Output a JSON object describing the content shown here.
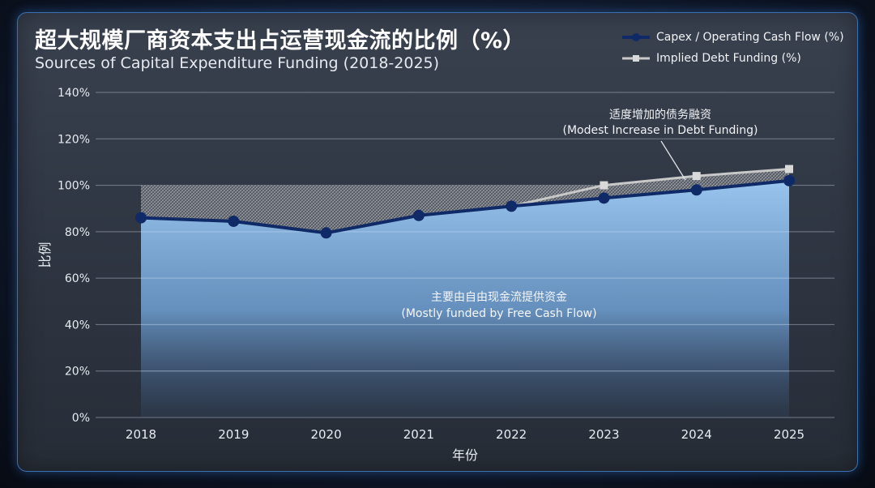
{
  "title": "超大规模厂商资本支出占运营现金流的比例（%）",
  "subtitle": "Sources of Capital Expenditure Funding (2018-2025)",
  "colors": {
    "capex_line": "#0f2a66",
    "capex_fill_top": "#9ac7f1",
    "capex_fill_bottom": "#3c5f8c",
    "debt_line": "#c8c8c8",
    "debt_marker": "#d9d9d9"
  },
  "chart_data": {
    "type": "line",
    "title": "超大规模厂商资本支出占运营现金流的比例（%）",
    "subtitle": "Sources of Capital Expenditure Funding (2018-2025)",
    "xlabel": "年份",
    "ylabel": "比例",
    "x": [
      "2018",
      "2019",
      "2020",
      "2021",
      "2022",
      "2023",
      "2024",
      "2025"
    ],
    "ylim": [
      0,
      140
    ],
    "yticks": [
      0,
      20,
      40,
      60,
      80,
      100,
      120,
      140
    ],
    "ytick_labels": [
      "0%",
      "20%",
      "40%",
      "60%",
      "80%",
      "100%",
      "120%",
      "140%"
    ],
    "grid": true,
    "legend_position": "top-right",
    "series": [
      {
        "name": "Capex / Operating Cash Flow (%)",
        "values": [
          86,
          84.5,
          79.5,
          87,
          91,
          94.5,
          98,
          102
        ]
      },
      {
        "name": "Implied Debt Funding (%)",
        "values": [
          null,
          null,
          null,
          null,
          91,
          100,
          104,
          107
        ]
      }
    ],
    "reference_line": 100,
    "annotations": [
      {
        "lines": [
          "适度增加的债务融资",
          "(Modest Increase in Debt Funding)"
        ]
      },
      {
        "lines": [
          "主要由自由现金流提供资金",
          "(Mostly funded by Free Cash Flow)"
        ]
      }
    ]
  }
}
